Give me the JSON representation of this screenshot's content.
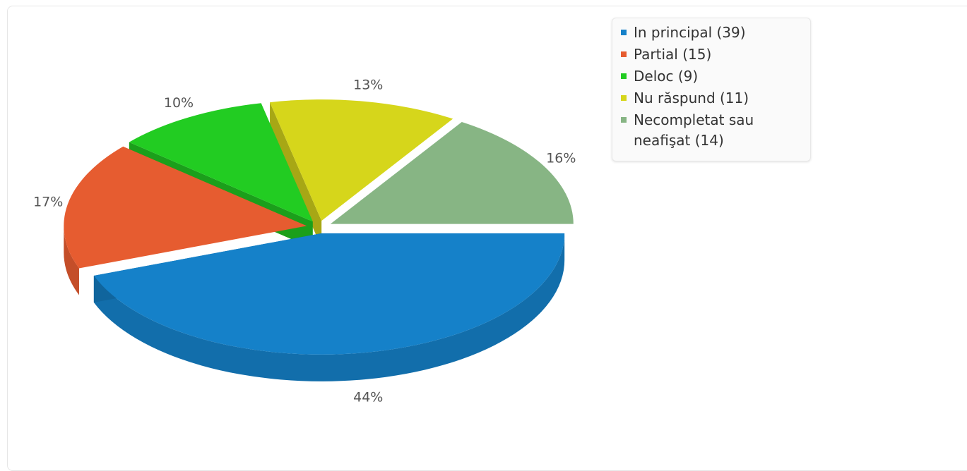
{
  "chart_data": {
    "type": "pie",
    "categories": [
      "In principal",
      "Partial",
      "Deloc",
      "Nu răspund",
      "Necompletat sau neafişat"
    ],
    "values": [
      39,
      15,
      9,
      11,
      14
    ],
    "percent_labels": [
      "44%",
      "17%",
      "10%",
      "13%",
      "16%"
    ],
    "legend_labels": [
      "In principal (39)",
      "Partial (15)",
      "Deloc (9)",
      "Nu răspund (11)",
      "Necompletat sau neafişat (14)"
    ],
    "colors": [
      "#1581c9",
      "#e65c30",
      "#22cc22",
      "#d6d61b",
      "#87b584"
    ],
    "legend_position": "top-right",
    "title": "",
    "style": "3d-exploded"
  }
}
